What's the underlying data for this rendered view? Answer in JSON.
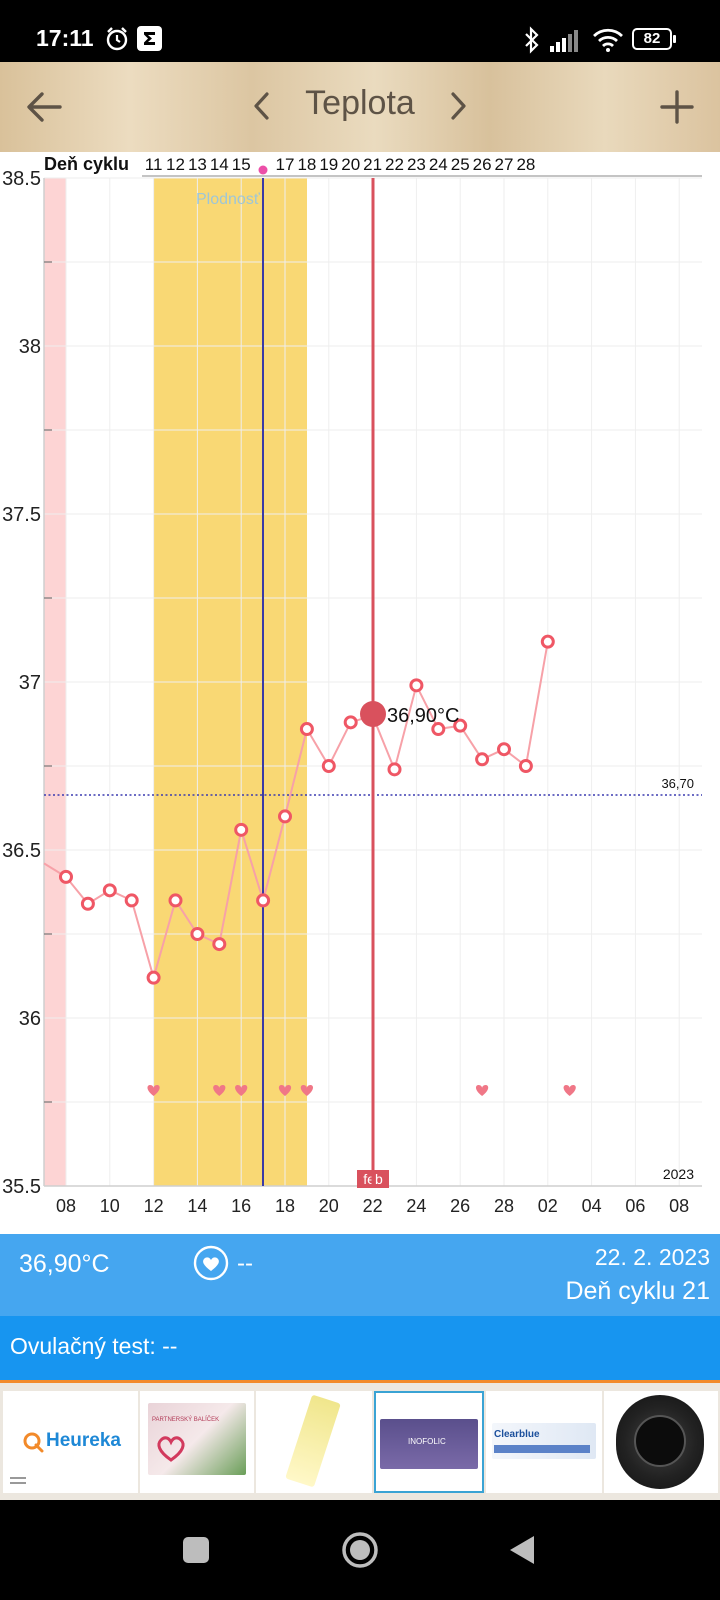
{
  "status_bar": {
    "time": "17:11",
    "battery": "82"
  },
  "toolbar": {
    "title": "Teplota"
  },
  "chart": {
    "header_label": "Deň cyklu",
    "cycle_days": [
      "11",
      "12",
      "13",
      "14",
      "15",
      "",
      "17",
      "18",
      "19",
      "20",
      "21",
      "22",
      "23",
      "24",
      "25",
      "26",
      "27",
      "28"
    ],
    "fertile_label": "Plodnosť",
    "y_ticks": [
      "38.5",
      "38",
      "37.5",
      "37",
      "36.5",
      "36",
      "35.5"
    ],
    "x_ticks": [
      "08",
      "10",
      "12",
      "14",
      "16",
      "18",
      "20",
      "22",
      "24",
      "26",
      "28",
      "02",
      "04",
      "06",
      "08"
    ],
    "month_label": "feb",
    "year_label": "2023",
    "baseline_label": "36,70",
    "selected_label": "36,90°C",
    "temps": [
      36.42,
      36.34,
      36.38,
      36.35,
      36.12,
      36.35,
      36.25,
      36.22,
      36.56,
      36.35,
      36.6,
      36.86,
      36.75,
      36.88,
      36.9,
      36.74,
      36.99,
      36.86,
      36.87,
      36.77,
      36.8,
      36.75,
      37.12
    ],
    "start_temp": 36.46,
    "heart_positions": [
      4,
      7,
      8,
      10,
      11,
      19,
      23
    ],
    "colors": {
      "menstruation": "#fdd4d4",
      "fertile": "#f9d874",
      "line": "#f7a1a8",
      "point": "#ef5765",
      "selected": "#d9515d",
      "ovulation": "#3a3aa5",
      "baseline": "#3a3ab0"
    }
  },
  "info": {
    "temperature": "36,90°C",
    "intercourse": "--",
    "date": "22. 2. 2023",
    "cycle_day": "Deň cyklu 21"
  },
  "ovulation_test": {
    "label": "Ovulačný test: --"
  },
  "ads": {
    "brand": "Heureka",
    "items": [
      "PARTNERSKÝ BALÍČEK",
      "INOFOLIC",
      "Clearblue"
    ]
  }
}
